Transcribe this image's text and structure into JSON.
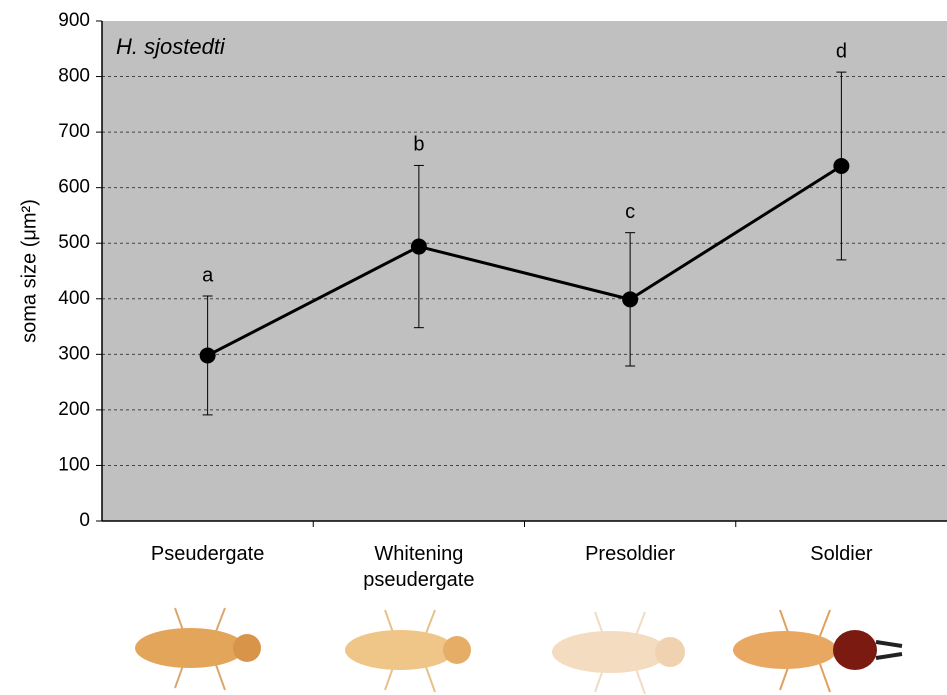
{
  "chart_data": {
    "type": "line",
    "title": "H. sjostedti",
    "ylabel": "soma size (μm²)",
    "categories": [
      "Pseudergate",
      "Whitening pseudergate",
      "Presoldier",
      "Soldier"
    ],
    "values": [
      298,
      494,
      399,
      639
    ],
    "errors": [
      107,
      146,
      120,
      169
    ],
    "annotations": [
      "a",
      "b",
      "c",
      "d"
    ],
    "color": "#000000",
    "ylim": [
      0,
      900
    ],
    "yticks": [
      0,
      100,
      200,
      300,
      400,
      500,
      600,
      700,
      800,
      900
    ],
    "grid": true
  }
}
